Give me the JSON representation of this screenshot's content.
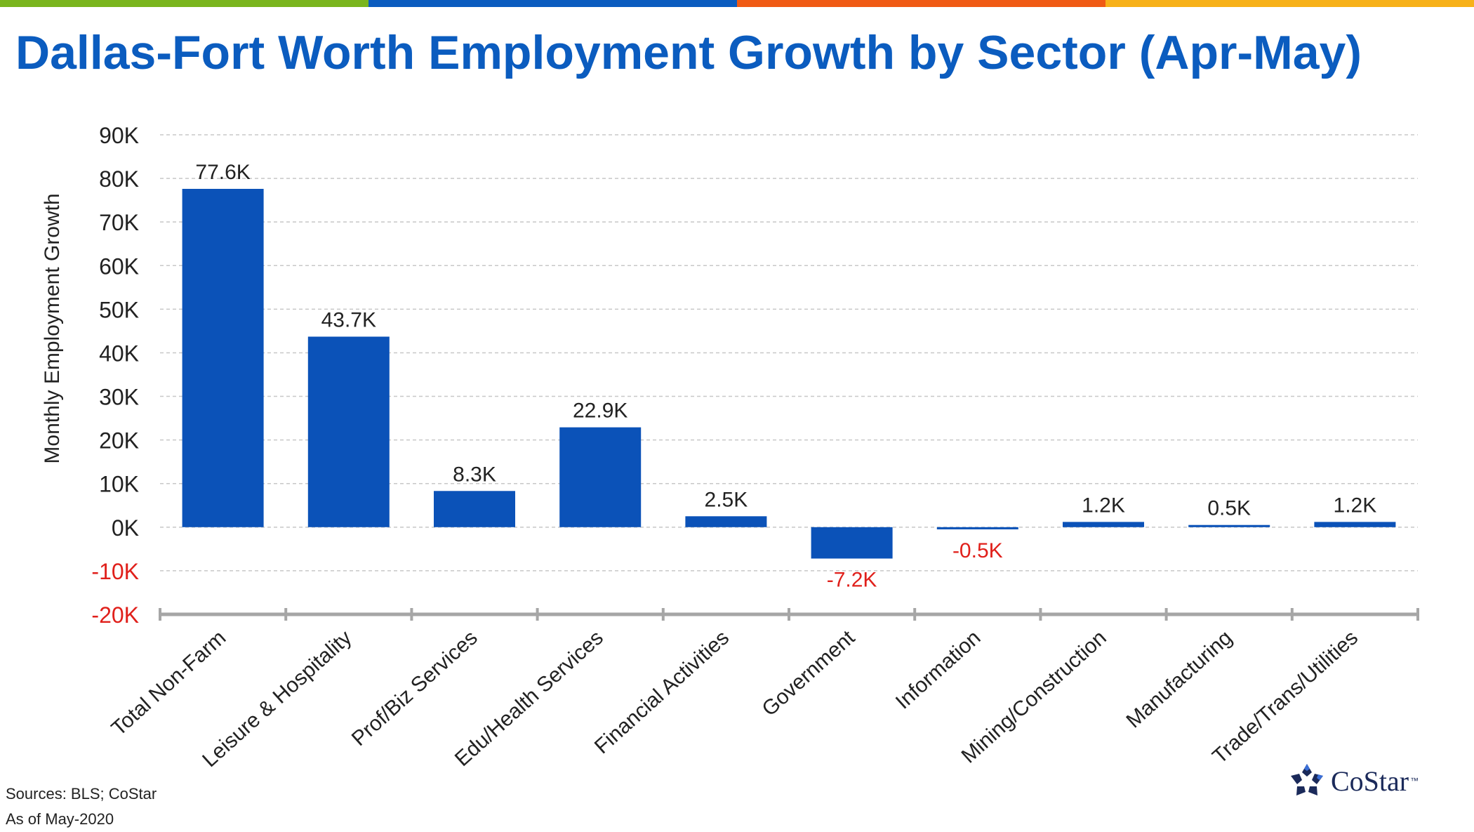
{
  "header": {
    "title": "Dallas-Fort Worth Employment Growth by Sector (Apr-May)",
    "bar_colors": [
      "#7ab51d",
      "#0b5cbf",
      "#f05a14",
      "#f7b119"
    ]
  },
  "chart_data": {
    "type": "bar",
    "title": "Dallas-Fort Worth Employment Growth by Sector (Apr-May)",
    "xlabel": "",
    "ylabel": "Monthly Employment Growth",
    "ylim": [
      -20,
      90
    ],
    "yticks": [
      -20,
      -10,
      0,
      10,
      20,
      30,
      40,
      50,
      60,
      70,
      80,
      90
    ],
    "ytick_labels": [
      "-20K",
      "-10K",
      "0K",
      "10K",
      "20K",
      "30K",
      "40K",
      "50K",
      "60K",
      "70K",
      "80K",
      "90K"
    ],
    "categories": [
      "Total Non-Farm",
      "Leisure & Hospitality",
      "Prof/Biz Services",
      "Edu/Health Services",
      "Financial Activities",
      "Government",
      "Information",
      "Mining/Construction",
      "Manufacturing",
      "Trade/Trans/Utilities"
    ],
    "values": [
      77.6,
      43.7,
      8.3,
      22.9,
      2.5,
      -7.2,
      -0.5,
      1.2,
      0.5,
      1.2
    ],
    "data_labels": [
      "77.6K",
      "43.7K",
      "8.3K",
      "22.9K",
      "2.5K",
      "-7.2K",
      "-0.5K",
      "1.2K",
      "0.5K",
      "1.2K"
    ],
    "grid": true,
    "bar_color": "#0b52b8",
    "negative_label_color": "#e0201b",
    "legend": "none"
  },
  "footer": {
    "sources": "Sources: BLS; CoStar",
    "as_of": "As of May-2020"
  },
  "logo": {
    "name": "CoStar",
    "tm": "™",
    "color": "#1b2a5a"
  }
}
